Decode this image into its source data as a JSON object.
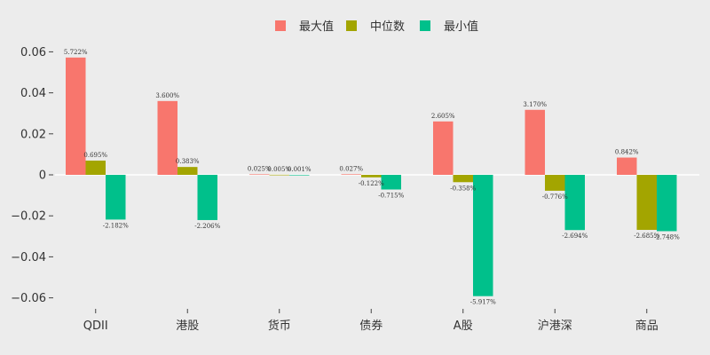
{
  "chart_data": {
    "type": "bar",
    "categories": [
      "QDII",
      "港股",
      "货币",
      "债券",
      "A股",
      "沪港深",
      "商品"
    ],
    "series": [
      {
        "name": "最大值",
        "color": "#f8766d",
        "values": [
          0.05722,
          0.036,
          0.00025,
          0.00027,
          0.02605,
          0.0317,
          0.00842
        ],
        "labels": [
          "5.722%",
          "3.600%",
          "0.025%",
          "0.027%",
          "2.605%",
          "3.170%",
          "0.842%"
        ]
      },
      {
        "name": "中位数",
        "color": "#a3a500",
        "values": [
          0.00695,
          0.00383,
          5e-05,
          -0.00122,
          -0.00358,
          -0.00776,
          -0.02685
        ],
        "labels": [
          "0.695%",
          "0.383%",
          "0.005%",
          "-0.122%",
          "-0.358%",
          "-0.776%",
          "-2.685%"
        ]
      },
      {
        "name": "最小值",
        "color": "#00c08b",
        "values": [
          -0.02182,
          -0.02206,
          1e-05,
          -0.00715,
          -0.05917,
          -0.02694,
          -0.02748
        ],
        "labels": [
          "-2.182%",
          "-2.206%",
          "0.001%",
          "-0.715%",
          "-5.917%",
          "-2.694%",
          "-2.748%"
        ]
      }
    ],
    "y_ticks": [
      0.06,
      0.04,
      0.02,
      0,
      -0.02,
      -0.04,
      -0.06
    ],
    "y_tick_labels": [
      "0.06",
      "0.04",
      "0.02",
      "0",
      "−0.02",
      "−0.04",
      "−0.06"
    ],
    "ylim": [
      -0.065,
      0.065
    ],
    "grid": false,
    "legend_position": "top-center"
  }
}
